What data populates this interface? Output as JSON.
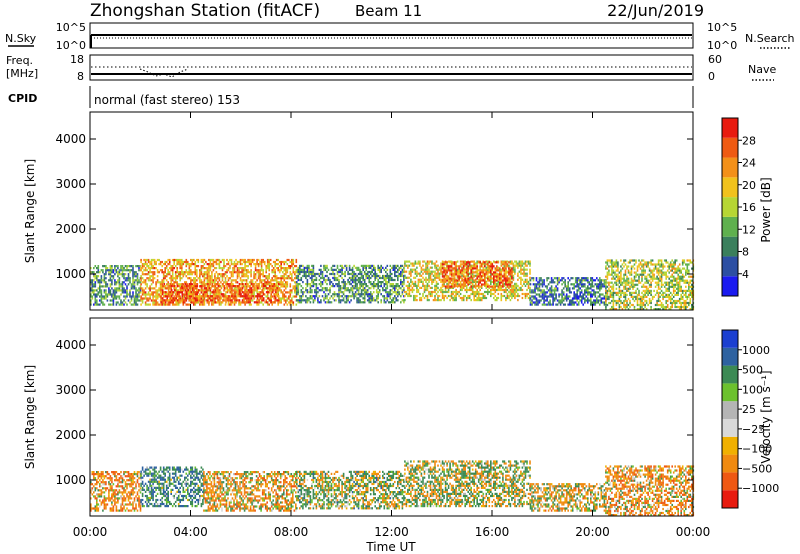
{
  "header": {
    "station": "Zhongshan Station (fitACF)",
    "beam": "Beam 11",
    "date": "22/Jun/2019"
  },
  "summary": {
    "nsky_label": "N.Sky",
    "nsearch_label": "N.Search",
    "freq_label_top": "Freq.",
    "freq_label_bottom": "[MHz]",
    "nave_label": "Nave",
    "cpid_label": "CPID",
    "mode_text": "normal (fast stereo) 153",
    "noise_ticks_left": [
      "10^5",
      "10^0"
    ],
    "noise_ticks_right": [
      "10^5",
      "10^0"
    ],
    "freq_ticks": [
      "18",
      "8"
    ],
    "nave_ticks": [
      "60",
      "0"
    ]
  },
  "colors": {
    "power_scale": [
      "#1b1bf0",
      "#2c4fa3",
      "#3a7f5c",
      "#5fb04e",
      "#b6d634",
      "#f1c21c",
      "#f39019",
      "#ef5a12",
      "#e81b0f"
    ],
    "velocity_scale": [
      "#1b3fd0",
      "#2e62a0",
      "#3c8a54",
      "#6cc12e",
      "#b5b5b5",
      "#d9d9d9",
      "#f0b000",
      "#f08a10",
      "#ef5812",
      "#e81b0f"
    ]
  },
  "chart_data": [
    {
      "type": "heatmap",
      "name": "power",
      "xlabel": "",
      "ylabel": "Slant Range [km]",
      "y_ticks": [
        "4000",
        "3000",
        "2000",
        "1000"
      ],
      "ylim": [
        200,
        4600
      ],
      "xlim": [
        0,
        24
      ],
      "colorbar_label": "Power [dB]",
      "colorbar_ticks": [
        "28",
        "24",
        "20",
        "16",
        "12",
        "8",
        "4"
      ],
      "clim": [
        0,
        32
      ],
      "regions": [
        {
          "t0": 0.0,
          "t1": 2.0,
          "r0": 300,
          "r1": 1200,
          "level": 10
        },
        {
          "t0": 2.0,
          "t1": 8.2,
          "r0": 300,
          "r1": 1300,
          "level": 22
        },
        {
          "t0": 2.8,
          "t1": 7.5,
          "r0": 350,
          "r1": 800,
          "level": 27
        },
        {
          "t0": 8.2,
          "t1": 12.5,
          "r0": 350,
          "r1": 1200,
          "level": 10
        },
        {
          "t0": 12.5,
          "t1": 17.5,
          "r0": 400,
          "r1": 1300,
          "level": 18
        },
        {
          "t0": 14.0,
          "t1": 16.8,
          "r0": 700,
          "r1": 1250,
          "level": 26
        },
        {
          "t0": 17.5,
          "t1": 20.5,
          "r0": 300,
          "r1": 900,
          "level": 8
        },
        {
          "t0": 20.5,
          "t1": 24.0,
          "r0": 200,
          "r1": 1300,
          "level": 16
        }
      ]
    },
    {
      "type": "heatmap",
      "name": "velocity",
      "xlabel": "Time UT",
      "ylabel": "Slant Range [km]",
      "x_ticks": [
        "00:00",
        "04:00",
        "08:00",
        "12:00",
        "16:00",
        "20:00",
        "00:00"
      ],
      "y_ticks": [
        "4000",
        "3000",
        "2000",
        "1000"
      ],
      "ylim": [
        200,
        4600
      ],
      "xlim": [
        0,
        24
      ],
      "colorbar_label": "Velocity [m s⁻¹]",
      "colorbar_ticks": [
        "1000",
        "500",
        "100",
        "25",
        "−25",
        "−100",
        "−500",
        "−1000"
      ],
      "regions": [
        {
          "t0": 0.0,
          "t1": 2.0,
          "r0": 300,
          "r1": 1200,
          "vel": -300
        },
        {
          "t0": 2.0,
          "t1": 4.5,
          "r0": 400,
          "r1": 1300,
          "vel": 400
        },
        {
          "t0": 4.5,
          "t1": 8.2,
          "r0": 300,
          "r1": 1200,
          "vel": -200
        },
        {
          "t0": 8.2,
          "t1": 12.5,
          "r0": 350,
          "r1": 1200,
          "vel": 100
        },
        {
          "t0": 12.5,
          "t1": 17.5,
          "r0": 400,
          "r1": 1400,
          "vel": 50
        },
        {
          "t0": 17.5,
          "t1": 20.5,
          "r0": 300,
          "r1": 900,
          "vel": -100
        },
        {
          "t0": 20.5,
          "t1": 24.0,
          "r0": 200,
          "r1": 1300,
          "vel": -250
        }
      ]
    }
  ]
}
